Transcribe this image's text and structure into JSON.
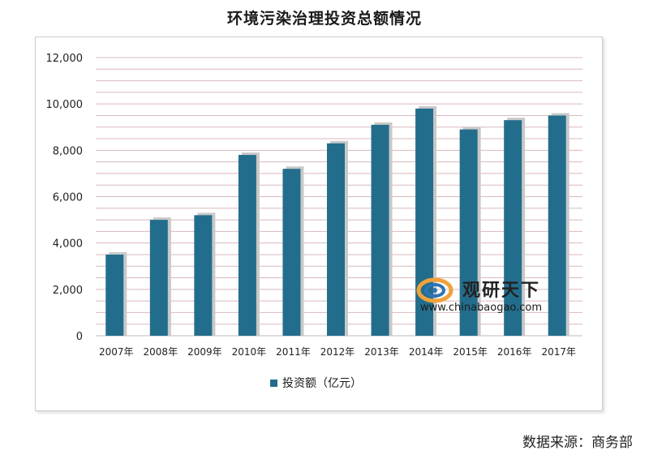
{
  "chart_data": {
    "type": "bar",
    "title": "环境污染治理投资总额情况",
    "categories": [
      "2007年",
      "2008年",
      "2009年",
      "2010年",
      "2011年",
      "2012年",
      "2013年",
      "2014年",
      "2015年",
      "2016年",
      "2017年"
    ],
    "series": [
      {
        "name": "投资额（亿元）",
        "values": [
          3500,
          5000,
          5200,
          7800,
          7200,
          8300,
          9100,
          9800,
          8900,
          9300,
          9500
        ],
        "color": "#236d8c"
      }
    ],
    "yticks": [
      "0",
      "2,000",
      "4,000",
      "6,000",
      "8,000",
      "10,000",
      "12,000"
    ],
    "ylim": [
      0,
      12000
    ],
    "grid": true,
    "grid_color": "#d9b8bd",
    "legend_position": "bottom"
  },
  "watermark": {
    "name": "观研天下",
    "url": "www.chinabaogao.com"
  },
  "source_text": "数据来源：商务部"
}
